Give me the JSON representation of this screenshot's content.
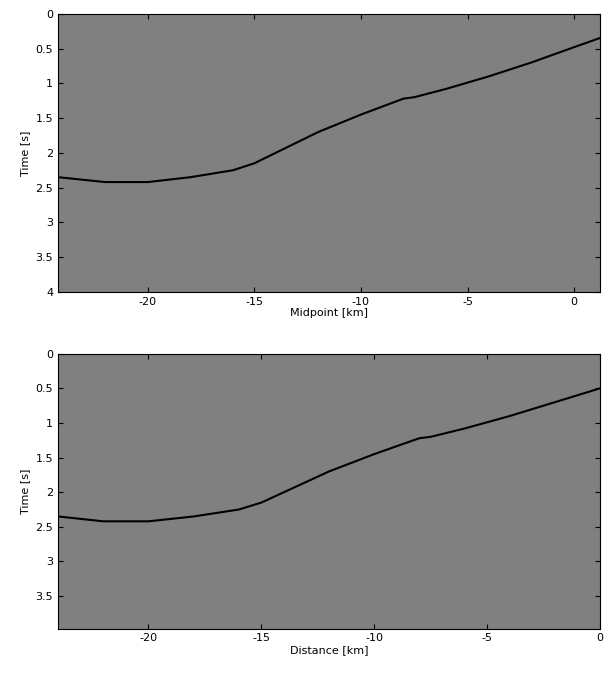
{
  "chart_data": [
    {
      "type": "line",
      "x_label": "Midpoint [km]",
      "y_label": "Time [s]",
      "x": [
        -24.2,
        -22,
        -20,
        -18,
        -16,
        -15,
        -14,
        -12,
        -10,
        -8,
        -7.5,
        -6,
        -4,
        -2,
        0,
        1.2
      ],
      "values": [
        2.35,
        2.42,
        2.42,
        2.35,
        2.25,
        2.15,
        2.0,
        1.7,
        1.45,
        1.22,
        1.2,
        1.08,
        0.9,
        0.7,
        0.48,
        0.35
      ],
      "color": "#000000",
      "xlim": [
        -24.2,
        1.2
      ],
      "ylim": [
        4,
        0
      ],
      "xticks": [
        -20,
        -15,
        -10,
        -5,
        0
      ],
      "yticks": [
        0,
        0.5,
        1,
        1.5,
        2,
        2.5,
        3,
        3.5,
        4
      ]
    },
    {
      "type": "line",
      "x_label": "Distance [km]",
      "y_label": "Time [s]",
      "x": [
        -24,
        -22,
        -20,
        -18,
        -16,
        -15,
        -14,
        -12,
        -10,
        -8,
        -7.5,
        -6,
        -4,
        -2,
        0
      ],
      "values": [
        2.35,
        2.42,
        2.42,
        2.35,
        2.25,
        2.15,
        2.0,
        1.7,
        1.45,
        1.22,
        1.2,
        1.08,
        0.9,
        0.7,
        0.5
      ],
      "color": "#000000",
      "xlim": [
        -24,
        0
      ],
      "ylim": [
        3.97,
        0
      ],
      "xticks": [
        -20,
        -15,
        -10,
        -5,
        0
      ],
      "yticks": [
        0,
        0.5,
        1,
        1.5,
        2,
        2.5,
        3,
        3.5
      ]
    }
  ]
}
